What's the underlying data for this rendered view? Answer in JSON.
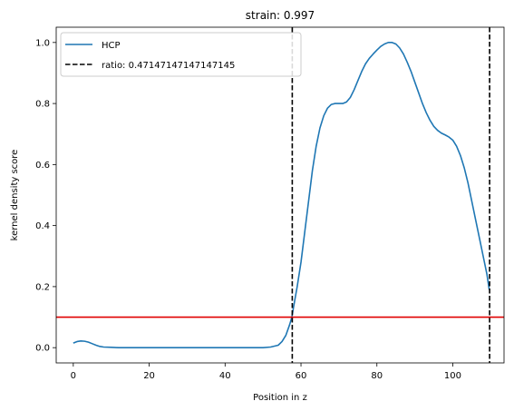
{
  "chart_data": {
    "type": "line",
    "title": "strain: 0.997",
    "xlabel": "Position in z",
    "ylabel": "kernel density score",
    "xlim": [
      -4.5,
      113.5
    ],
    "ylim": [
      -0.05,
      1.05
    ],
    "xticks": [
      0,
      20,
      40,
      60,
      80,
      100
    ],
    "yticks": [
      0.0,
      0.2,
      0.4,
      0.6,
      0.8,
      1.0
    ],
    "xtick_labels": [
      "0",
      "20",
      "40",
      "60",
      "80",
      "100"
    ],
    "ytick_labels": [
      "0.0",
      "0.2",
      "0.4",
      "0.6",
      "0.8",
      "1.0"
    ],
    "grid": false,
    "legend_position": "upper-left",
    "series": [
      {
        "name": "HCP",
        "color": "#1f77b4",
        "x": [
          0,
          1,
          2,
          3,
          4,
          5,
          6,
          7,
          8,
          10,
          12,
          15,
          20,
          25,
          30,
          35,
          40,
          45,
          50,
          52,
          54,
          55,
          56,
          57,
          57.6,
          58,
          59,
          60,
          61,
          62,
          63,
          64,
          65,
          66,
          67,
          68,
          69,
          70,
          71,
          72,
          73,
          74,
          75,
          76,
          77,
          78,
          79,
          80,
          81,
          82,
          83,
          84,
          85,
          86,
          87,
          88,
          89,
          90,
          91,
          92,
          93,
          94,
          95,
          96,
          97,
          98,
          99,
          100,
          101,
          102,
          103,
          104,
          105,
          106,
          107,
          108,
          109,
          109.6
        ],
        "y": [
          0.015,
          0.02,
          0.022,
          0.021,
          0.018,
          0.013,
          0.008,
          0.004,
          0.002,
          0.001,
          0.0,
          0.0,
          0.0,
          0.0,
          0.0,
          0.0,
          0.0,
          0.0,
          0.0,
          0.002,
          0.008,
          0.02,
          0.04,
          0.075,
          0.1,
          0.13,
          0.2,
          0.28,
          0.38,
          0.48,
          0.58,
          0.66,
          0.72,
          0.76,
          0.785,
          0.797,
          0.8,
          0.8,
          0.8,
          0.805,
          0.82,
          0.845,
          0.875,
          0.905,
          0.93,
          0.948,
          0.962,
          0.975,
          0.987,
          0.995,
          1.0,
          1.0,
          0.995,
          0.982,
          0.962,
          0.935,
          0.905,
          0.87,
          0.835,
          0.8,
          0.77,
          0.745,
          0.725,
          0.712,
          0.703,
          0.697,
          0.69,
          0.68,
          0.66,
          0.63,
          0.59,
          0.54,
          0.48,
          0.42,
          0.36,
          0.3,
          0.24,
          0.19
        ]
      }
    ],
    "vertical_lines": [
      {
        "x": 57.7,
        "style": "dashed",
        "color": "#000000"
      },
      {
        "x": 109.7,
        "style": "dashed",
        "color": "#000000"
      }
    ],
    "vertical_line_legend": "ratio: 0.47147147147147145",
    "horizontal_line": {
      "y": 0.1,
      "color": "#e00000"
    }
  }
}
